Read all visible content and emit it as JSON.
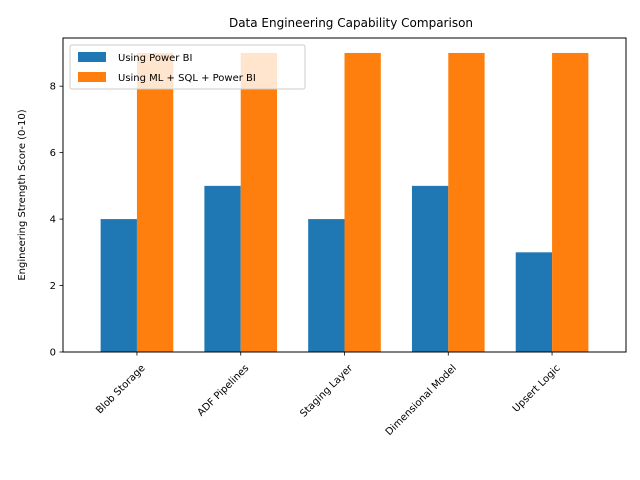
{
  "chart_data": {
    "type": "bar",
    "title": "Data Engineering Capability Comparison",
    "xlabel": "",
    "ylabel": "Engineering Strength Score (0-10)",
    "categories": [
      "Blob Storage",
      "ADF Pipelines",
      "Staging Layer",
      "Dimensional Model",
      "Upsert Logic"
    ],
    "series": [
      {
        "name": "Using Power BI",
        "values": [
          4,
          5,
          4,
          5,
          3
        ],
        "color": "#1f77b4"
      },
      {
        "name": "Using ML + SQL + Power BI",
        "values": [
          9,
          9,
          9,
          9,
          9
        ],
        "color": "#ff7f0e"
      }
    ],
    "ylim": [
      0,
      9.45
    ],
    "yticks": [
      0,
      2,
      4,
      6,
      8
    ],
    "ytick_labels": [
      "0",
      "2",
      "4",
      "6",
      "8"
    ],
    "grid": false,
    "legend_position": "top-left"
  }
}
